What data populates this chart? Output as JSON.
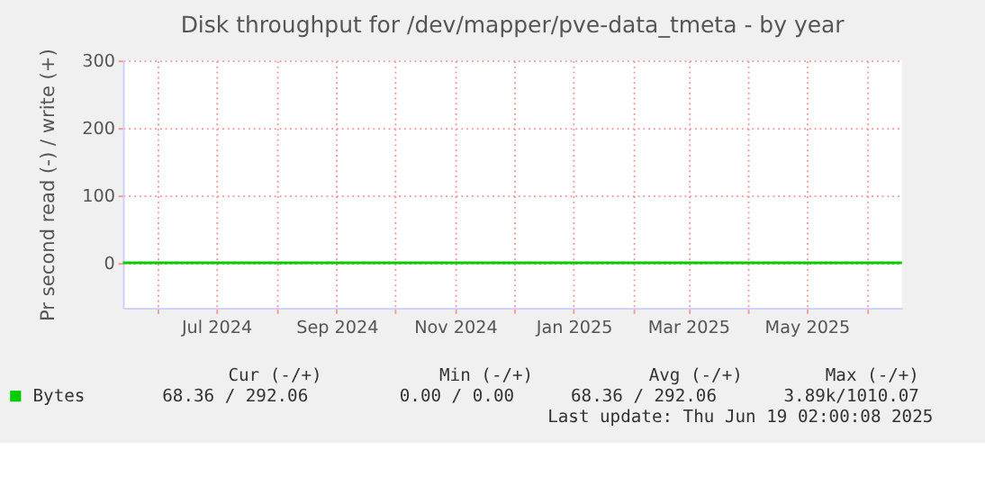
{
  "chart_data": {
    "type": "line",
    "title": "Disk throughput for /dev/mapper/pve-data_tmeta - by year",
    "ylabel": "Pr second read (-) / write (+)",
    "x": [
      "2024-05-14",
      "2025-06-19"
    ],
    "series": [
      {
        "name": "Bytes",
        "color": "#00cc00",
        "values": [
          0,
          0
        ]
      }
    ],
    "xlim": [
      "2024-05-14",
      "2025-06-19"
    ],
    "xticks": [
      {
        "value": "2024-06-01",
        "label": null
      },
      {
        "value": "2024-07-01",
        "label": "Jul 2024"
      },
      {
        "value": "2024-08-01",
        "label": null
      },
      {
        "value": "2024-09-01",
        "label": "Sep 2024"
      },
      {
        "value": "2024-10-01",
        "label": null
      },
      {
        "value": "2024-11-01",
        "label": "Nov 2024"
      },
      {
        "value": "2024-12-01",
        "label": null
      },
      {
        "value": "2025-01-01",
        "label": "Jan 2025"
      },
      {
        "value": "2025-02-01",
        "label": null
      },
      {
        "value": "2025-03-01",
        "label": "Mar 2025"
      },
      {
        "value": "2025-04-01",
        "label": null
      },
      {
        "value": "2025-05-01",
        "label": "May 2025"
      },
      {
        "value": "2025-06-01",
        "label": null
      }
    ],
    "ylim": [
      -67,
      300
    ],
    "yticks": [
      0,
      100,
      200,
      300
    ],
    "line_style": "solid",
    "grid": true,
    "legend": "bottom",
    "annotations": [
      "Cur (-/+)",
      "Min (-/+)",
      "Avg (-/+)",
      "Max (-/+)",
      "68.36 / 292.06",
      "0.00 /   0.00",
      "68.36 / 292.06",
      "3.89k/1010.07",
      "Last update: Thu Jun 19 02:00:08 2025"
    ]
  }
}
